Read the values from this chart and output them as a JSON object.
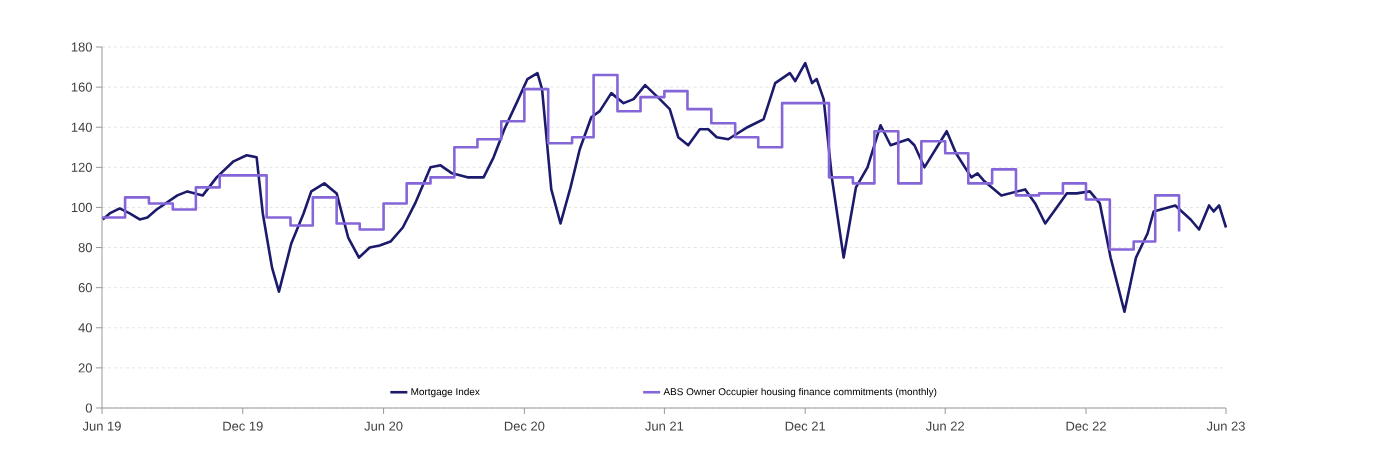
{
  "chart_data": {
    "type": "line",
    "xlim": [
      "2019-06-01",
      "2023-06-01"
    ],
    "xticks": [
      {
        "value": "2019-06-01",
        "label": "Jun 19"
      },
      {
        "value": "2019-12-01",
        "label": "Dec 19"
      },
      {
        "value": "2020-06-01",
        "label": "Jun 20"
      },
      {
        "value": "2020-12-01",
        "label": "Dec 20"
      },
      {
        "value": "2021-06-01",
        "label": "Jun 21"
      },
      {
        "value": "2021-12-01",
        "label": "Dec 21"
      },
      {
        "value": "2022-06-01",
        "label": "Jun 22"
      },
      {
        "value": "2022-12-01",
        "label": "Dec 22"
      },
      {
        "value": "2023-06-01",
        "label": "Jun 23"
      }
    ],
    "ylim": [
      0,
      180
    ],
    "yticks": [
      0,
      20,
      40,
      60,
      80,
      100,
      120,
      140,
      160,
      180
    ],
    "grid": "y",
    "legend": "bottom",
    "series": [
      {
        "name": "Mortgage Index",
        "color": "#1c1a6b",
        "x": [
          "2019-06-02",
          "2019-06-11",
          "2019-06-24",
          "2019-07-07",
          "2019-07-20",
          "2019-07-30",
          "2019-08-11",
          "2019-09-07",
          "2019-09-20",
          "2019-10-10",
          "2019-10-28",
          "2019-11-19",
          "2019-12-06",
          "2019-12-19",
          "2019-12-27",
          "2020-01-08",
          "2020-01-17",
          "2020-02-02",
          "2020-02-18",
          "2020-02-28",
          "2020-03-16",
          "2020-04-01",
          "2020-04-16",
          "2020-04-30",
          "2020-05-14",
          "2020-05-27",
          "2020-06-10",
          "2020-06-26",
          "2020-07-12",
          "2020-08-01",
          "2020-08-14",
          "2020-08-29",
          "2020-09-18",
          "2020-10-09",
          "2020-10-22",
          "2020-11-05",
          "2020-11-22",
          "2020-12-05",
          "2020-12-18",
          "2020-12-24",
          "2021-01-05",
          "2021-01-17",
          "2021-01-30",
          "2021-02-11",
          "2021-02-26",
          "2021-03-09",
          "2021-03-24",
          "2021-04-09",
          "2021-04-22",
          "2021-05-07",
          "2021-05-26",
          "2021-06-08",
          "2021-06-19",
          "2021-07-02",
          "2021-07-17",
          "2021-07-28",
          "2021-08-08",
          "2021-08-23",
          "2021-09-17",
          "2021-10-08",
          "2021-10-23",
          "2021-11-11",
          "2021-11-18",
          "2021-12-01",
          "2021-12-10",
          "2021-12-16",
          "2021-12-25",
          "2022-01-05",
          "2022-01-20",
          "2022-02-05",
          "2022-02-20",
          "2022-03-09",
          "2022-03-22",
          "2022-04-14",
          "2022-04-22",
          "2022-05-05",
          "2022-06-03",
          "2022-06-15",
          "2022-07-05",
          "2022-07-13",
          "2022-07-22",
          "2022-08-13",
          "2022-09-13",
          "2022-09-26",
          "2022-10-09",
          "2022-10-24",
          "2022-11-06",
          "2022-11-19",
          "2022-12-06",
          "2022-12-19",
          "2023-01-02",
          "2023-01-20",
          "2023-02-04",
          "2023-02-19",
          "2023-02-27",
          "2023-03-27",
          "2023-04-16",
          "2023-04-27",
          "2023-05-10",
          "2023-05-16",
          "2023-05-23",
          "2023-06-01"
        ],
        "values": [
          94,
          97,
          99.5,
          97,
          94,
          95,
          99,
          106,
          108,
          106,
          115,
          123,
          126,
          125,
          97,
          70,
          58,
          82,
          97,
          108,
          112,
          107,
          85,
          75,
          80,
          81,
          83,
          90,
          102,
          120,
          121,
          117,
          115,
          115,
          125,
          139,
          153,
          164,
          167,
          159,
          109,
          92,
          110,
          129,
          145,
          148,
          157,
          152,
          154,
          161,
          154,
          149,
          135,
          131,
          139,
          139,
          135,
          134,
          140,
          144,
          162,
          167,
          163,
          172,
          162,
          164,
          154,
          114,
          75,
          110,
          120,
          141,
          131,
          134,
          131,
          120,
          138,
          127,
          115,
          117,
          113,
          106,
          109,
          102,
          92,
          100,
          107,
          107,
          108,
          102,
          75,
          48,
          75,
          87,
          98,
          101,
          94,
          89,
          101,
          98,
          101,
          90
        ]
      },
      {
        "name": "ABS Owner Occupier housing finance commitments (monthly)",
        "type": "step",
        "color": "#8466d8",
        "x": [
          "2019-06",
          "2019-07",
          "2019-08",
          "2019-09",
          "2019-10",
          "2019-11",
          "2019-12",
          "2020-01",
          "2020-02",
          "2020-03",
          "2020-04",
          "2020-05",
          "2020-06",
          "2020-07",
          "2020-08",
          "2020-09",
          "2020-10",
          "2020-11",
          "2020-12",
          "2021-01",
          "2021-02",
          "2021-03",
          "2021-04",
          "2021-05",
          "2021-06",
          "2021-07",
          "2021-08",
          "2021-09",
          "2021-10",
          "2021-11",
          "2021-12",
          "2022-01",
          "2022-02",
          "2022-03",
          "2022-04",
          "2022-05",
          "2022-06",
          "2022-07",
          "2022-08",
          "2022-09",
          "2022-10",
          "2022-11",
          "2022-12",
          "2023-01",
          "2023-02",
          "2023-03",
          "2023-04"
        ],
        "values": [
          95,
          105,
          102,
          99,
          110,
          116,
          116,
          95,
          91,
          105,
          92,
          89,
          102,
          112,
          115,
          130,
          134,
          143,
          159,
          132,
          135,
          166,
          148,
          155,
          158,
          149,
          142,
          135,
          130,
          152,
          152,
          115,
          112,
          138,
          112,
          133,
          127,
          112,
          119,
          106,
          107,
          112,
          104,
          79,
          83,
          106,
          88
        ]
      }
    ]
  }
}
